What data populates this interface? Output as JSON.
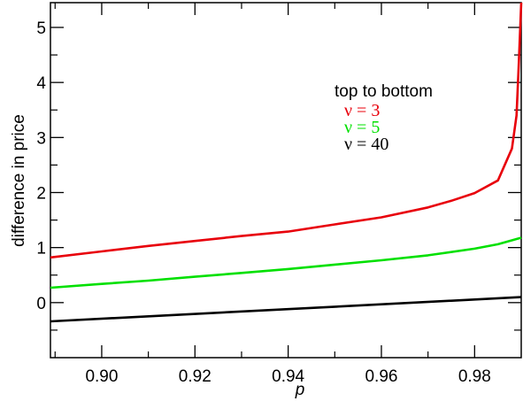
{
  "chart_data": {
    "type": "line",
    "xlabel": "p",
    "ylabel": "difference in price",
    "xlim": [
      0.889,
      0.99
    ],
    "ylim": [
      -1.0,
      5.45
    ],
    "xticks": [
      0.9,
      0.92,
      0.94,
      0.96,
      0.98
    ],
    "xtick_labels": [
      "0.90",
      "0.92",
      "0.94",
      "0.96",
      "0.98"
    ],
    "yticks": [
      0,
      1,
      2,
      3,
      4,
      5
    ],
    "ytick_labels": [
      "0",
      "1",
      "2",
      "3",
      "4",
      "5"
    ],
    "grid": false,
    "legend": {
      "title": "top to bottom",
      "placement": "top-right",
      "entries": [
        "ν = 3",
        "ν = 5",
        "ν = 40"
      ]
    },
    "series": [
      {
        "name": "ν = 3",
        "color": "#e8000b",
        "x": [
          0.889,
          0.9,
          0.91,
          0.92,
          0.93,
          0.94,
          0.95,
          0.96,
          0.97,
          0.975,
          0.98,
          0.985,
          0.988,
          0.989,
          0.9895,
          0.99
        ],
        "y": [
          0.82,
          0.93,
          1.03,
          1.12,
          1.21,
          1.29,
          1.42,
          1.55,
          1.73,
          1.85,
          1.99,
          2.22,
          2.8,
          3.4,
          4.4,
          5.45
        ]
      },
      {
        "name": "ν = 5",
        "color": "#00e000",
        "x": [
          0.889,
          0.9,
          0.91,
          0.92,
          0.93,
          0.94,
          0.95,
          0.96,
          0.97,
          0.98,
          0.985,
          0.99
        ],
        "y": [
          0.27,
          0.34,
          0.4,
          0.47,
          0.54,
          0.61,
          0.69,
          0.77,
          0.86,
          0.98,
          1.06,
          1.18
        ]
      },
      {
        "name": "ν = 40",
        "color": "#000000",
        "x": [
          0.889,
          0.99
        ],
        "y": [
          -0.34,
          0.1
        ]
      }
    ]
  }
}
